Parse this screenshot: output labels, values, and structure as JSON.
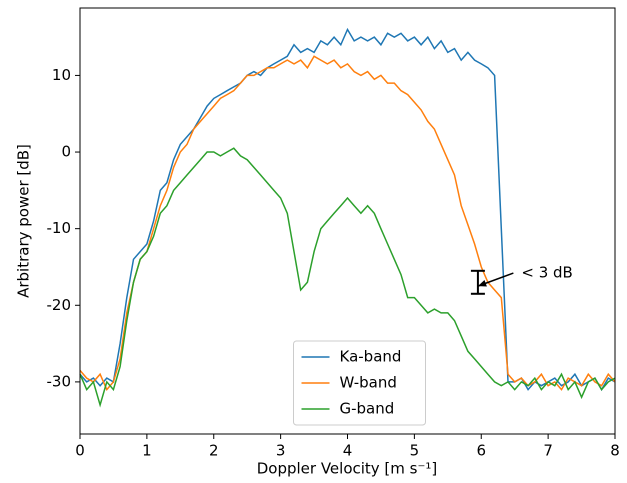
{
  "chart_data": {
    "type": "line",
    "xlabel": "Doppler Velocity [m s⁻¹]",
    "ylabel": "Arbitrary power [dB]",
    "x": [
      0,
      0.1,
      0.2,
      0.3,
      0.4,
      0.5,
      0.6,
      0.7,
      0.8,
      0.9,
      1,
      1.1,
      1.2,
      1.3,
      1.4,
      1.5,
      1.6,
      1.7,
      1.8,
      1.9,
      2,
      2.1,
      2.2,
      2.3,
      2.4,
      2.5,
      2.6,
      2.7,
      2.8,
      2.9,
      3,
      3.1,
      3.2,
      3.3,
      3.4,
      3.5,
      3.6,
      3.7,
      3.8,
      3.9,
      4,
      4.1,
      4.2,
      4.3,
      4.4,
      4.5,
      4.6,
      4.7,
      4.8,
      4.9,
      5,
      5.1,
      5.2,
      5.3,
      5.4,
      5.5,
      5.6,
      5.7,
      5.8,
      5.9,
      6,
      6.1,
      6.2,
      6.3,
      6.4,
      6.5,
      6.6,
      6.7,
      6.8,
      6.9,
      7,
      7.1,
      7.2,
      7.3,
      7.4,
      7.5,
      7.6,
      7.7,
      7.8,
      7.9,
      8
    ],
    "series": [
      {
        "name": "Ka-band",
        "color": "#1f77b4",
        "values": [
          -29,
          -30,
          -29.5,
          -30.5,
          -29.5,
          -30,
          -25,
          -19,
          -14,
          -13,
          -12,
          -9,
          -5,
          -4,
          -1,
          1,
          2,
          3,
          4.5,
          6,
          7,
          7.5,
          8,
          8.5,
          9,
          10,
          10.5,
          10,
          11,
          11.5,
          12,
          12.5,
          14,
          13,
          13.5,
          13,
          14.5,
          14,
          15,
          14,
          16,
          14.5,
          15,
          14.5,
          15,
          14,
          15.5,
          15,
          15.5,
          14.5,
          15,
          14,
          15,
          13.5,
          14.5,
          13,
          13.5,
          12,
          13,
          12,
          11.5,
          11,
          10,
          -10,
          -30,
          -30,
          -29.5,
          -31,
          -30,
          -30.5,
          -30,
          -29.5,
          -30.5,
          -30,
          -29,
          -30.5,
          -30,
          -29.5,
          -31,
          -29.5,
          -30
        ]
      },
      {
        "name": "W-band",
        "color": "#ff7f0e",
        "values": [
          -28.5,
          -29.5,
          -30,
          -29,
          -31,
          -30,
          -27,
          -21,
          -17,
          -14,
          -13,
          -10,
          -7,
          -5,
          -2,
          0,
          1,
          3,
          4,
          5,
          6,
          7,
          7.5,
          8,
          9,
          10,
          10,
          10.5,
          11,
          11,
          11.5,
          12,
          11.5,
          12,
          11,
          12.5,
          12,
          11.5,
          12,
          11,
          11.5,
          10.5,
          10,
          10.5,
          9.5,
          10,
          9,
          9,
          8,
          7.5,
          6.5,
          5.5,
          4,
          3,
          1,
          -1,
          -3,
          -7,
          -9.5,
          -12,
          -15,
          -17,
          -18,
          -19,
          -29,
          -30,
          -29.5,
          -30.5,
          -30,
          -29,
          -30.5,
          -30,
          -31,
          -29.5,
          -30,
          -30.5,
          -29,
          -30,
          -30.5,
          -29,
          -30
        ]
      },
      {
        "name": "G-band",
        "color": "#2ca02c",
        "values": [
          -29,
          -31,
          -30,
          -33,
          -30,
          -31,
          -28,
          -22,
          -17,
          -14,
          -13,
          -11,
          -8,
          -7,
          -5,
          -4,
          -3,
          -2,
          -1,
          0,
          0,
          -0.5,
          0,
          0.5,
          -0.5,
          -1,
          -2,
          -3,
          -4,
          -5,
          -6,
          -8,
          -13,
          -18,
          -17,
          -13,
          -10,
          -9,
          -8,
          -7,
          -6,
          -7,
          -8,
          -7,
          -8,
          -10,
          -12,
          -14,
          -16,
          -19,
          -19,
          -20,
          -21,
          -20.5,
          -21,
          -21,
          -22,
          -24,
          -26,
          -27,
          -28,
          -29,
          -30,
          -30.5,
          -30,
          -31,
          -30,
          -30.5,
          -29.5,
          -31,
          -30,
          -30.5,
          -29,
          -31,
          -30,
          -32,
          -30,
          -29.5,
          -31,
          -30,
          -29.5
        ]
      }
    ],
    "xlim": [
      0,
      8
    ],
    "xticks": [
      0,
      1,
      2,
      3,
      4,
      5,
      6,
      7,
      8
    ],
    "ylim": [
      -36.8,
      18.8
    ],
    "yticks": [
      -30,
      -20,
      -10,
      0,
      10
    ],
    "legend": "lower center",
    "annotation": {
      "text": "< 3 dB",
      "text_x": 6.6,
      "text_y": -15.8,
      "x": 5.95,
      "y_low": -18.5,
      "y_high": -15.5,
      "arrow_y": -17.5
    }
  }
}
